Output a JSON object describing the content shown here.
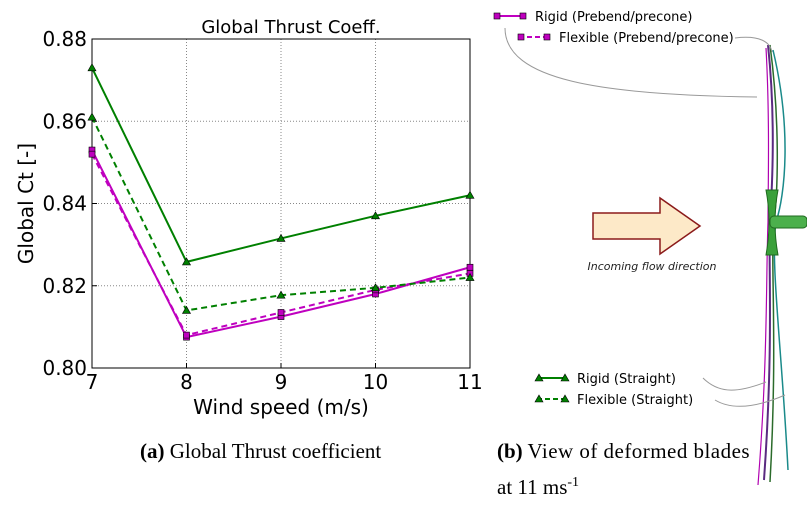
{
  "chart_data": {
    "type": "line",
    "title": "Global Thrust Coeff.",
    "x_label": "Wind speed (m/s)",
    "y_label": "Global Ct [-]",
    "x": [
      7,
      8,
      9,
      10,
      11
    ],
    "xlim": [
      7,
      11
    ],
    "xticks": [
      7,
      8,
      9,
      10,
      11
    ],
    "ylim": [
      0.8,
      0.88
    ],
    "yticks": [
      {
        "value": 0.8,
        "label": "0.80"
      },
      0.82,
      0.84,
      0.86,
      0.88
    ],
    "grid": true,
    "series": [
      {
        "name": "Rigid (Prebend/precone)",
        "color": "#bf00bf",
        "dash": false,
        "marker": "square",
        "values": [
          0.853,
          0.8075,
          0.8125,
          0.818,
          0.8245
        ]
      },
      {
        "name": "Flexible (Prebend/precone)",
        "color": "#bf00bf",
        "dash": true,
        "marker": "square",
        "values": [
          0.852,
          0.808,
          0.8135,
          0.819,
          0.823
        ]
      },
      {
        "name": "Rigid (Straight)",
        "color": "#008000",
        "dash": false,
        "marker": "triangle",
        "values": [
          0.873,
          0.8258,
          0.8315,
          0.837,
          0.842
        ]
      },
      {
        "name": "Flexible (Straight)",
        "color": "#008000",
        "dash": true,
        "marker": "triangle",
        "values": [
          0.861,
          0.814,
          0.8177,
          0.8195,
          0.822
        ]
      }
    ]
  },
  "diagram": {
    "flow_label": "Incoming flow direction"
  },
  "captions": {
    "a": {
      "label": "(a)",
      "text": "Global Thrust coefficient"
    },
    "b": {
      "label": "(b)",
      "text": "View of deformed blades",
      "line2": "at 11 ms",
      "superscript": "-1"
    }
  }
}
